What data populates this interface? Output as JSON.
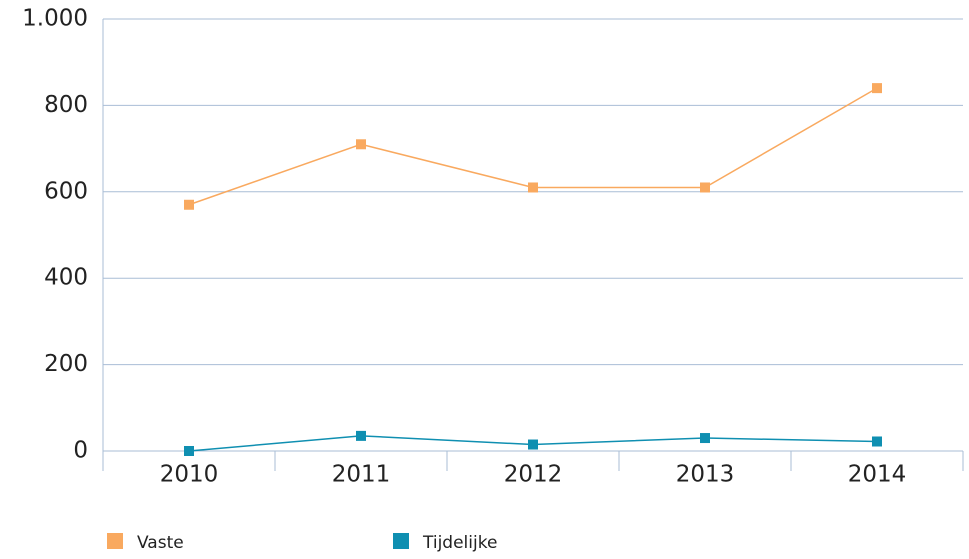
{
  "chart_data": {
    "type": "line",
    "categories": [
      "2010",
      "2011",
      "2012",
      "2013",
      "2014"
    ],
    "series": [
      {
        "name": "Vaste",
        "color": "#f9a95f",
        "values": [
          570,
          710,
          610,
          610,
          840
        ]
      },
      {
        "name": "Tijdelijke",
        "color": "#0f8fb1",
        "values": [
          0,
          35,
          15,
          30,
          22
        ]
      }
    ],
    "ylim": [
      0,
      1000
    ],
    "yticks": [
      0,
      200,
      400,
      600,
      800,
      {
        "value": 1000,
        "label": "1.000"
      }
    ],
    "grid": true,
    "legend": "bottom"
  }
}
